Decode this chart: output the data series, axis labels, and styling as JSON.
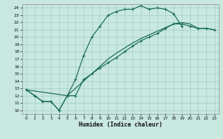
{
  "bg_color": "#c8e8e0",
  "grid_color": "#a0ccc4",
  "line_color": "#1a6b5a",
  "xlabel": "Humidex (Indice chaleur)",
  "xlim": [
    -0.5,
    23.5
  ],
  "ylim": [
    9.5,
    24.5
  ],
  "xticks": [
    0,
    1,
    2,
    3,
    4,
    5,
    6,
    7,
    8,
    9,
    10,
    11,
    12,
    13,
    14,
    15,
    16,
    17,
    18,
    19,
    20,
    21,
    22,
    23
  ],
  "yticks": [
    10,
    11,
    12,
    13,
    14,
    15,
    16,
    17,
    18,
    19,
    20,
    21,
    22,
    23,
    24
  ],
  "curve1_x": [
    0,
    1,
    2,
    3,
    4,
    5,
    6,
    7,
    8,
    9,
    10,
    11,
    12,
    13,
    14,
    15,
    16,
    17,
    18,
    19
  ],
  "curve1_y": [
    12.8,
    12.0,
    11.2,
    11.2,
    10.0,
    12.0,
    14.2,
    17.5,
    20.0,
    21.5,
    23.0,
    23.5,
    23.8,
    23.8,
    24.3,
    23.8,
    24.0,
    23.8,
    23.2,
    21.5
  ],
  "curve2_x": [
    0,
    1,
    2,
    3,
    4,
    5,
    6,
    7,
    8,
    9,
    10,
    11,
    12,
    13,
    14,
    15,
    16,
    17,
    18,
    19,
    20,
    21,
    22,
    23
  ],
  "curve2_y": [
    12.8,
    12.0,
    11.2,
    11.2,
    10.0,
    12.0,
    12.0,
    14.2,
    15.0,
    15.8,
    16.5,
    17.2,
    18.0,
    18.8,
    19.5,
    20.0,
    20.5,
    21.2,
    21.8,
    21.8,
    21.5,
    21.2,
    21.2,
    21.0
  ],
  "curve3_x": [
    0,
    5,
    6,
    7,
    8,
    9,
    10,
    11,
    12,
    13,
    14,
    15,
    16,
    17,
    18,
    19,
    20,
    21,
    22,
    23
  ],
  "curve3_y": [
    12.8,
    12.0,
    13.0,
    14.0,
    15.0,
    16.0,
    17.0,
    17.8,
    18.5,
    19.2,
    19.8,
    20.3,
    20.8,
    21.3,
    21.8,
    22.0,
    21.8,
    21.2,
    21.2,
    21.0
  ]
}
